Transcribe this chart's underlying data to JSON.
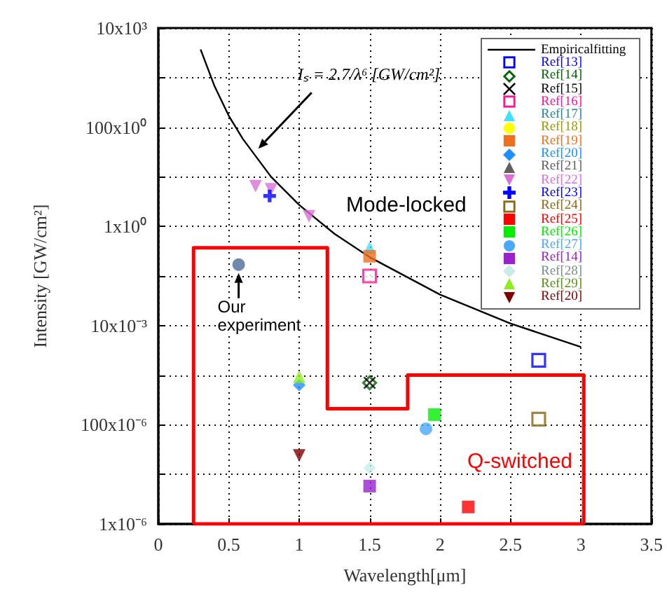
{
  "chart_data": {
    "type": "scatter",
    "xlabel": "Wavelength[μm]",
    "ylabel": "Intensity [GW/cm²]",
    "xlim": [
      0,
      3.5
    ],
    "xticks": [
      0,
      0.5,
      1,
      1.5,
      2,
      2.5,
      3,
      3.5
    ],
    "ylim": [
      1e-06,
      10000.0
    ],
    "log": "y",
    "yticks": [
      {
        "value": 1e-06,
        "label": "1x10⁻⁶"
      },
      {
        "value": 1e-05,
        "label": null
      },
      {
        "value": 0.0001,
        "label": "100x10⁻⁶"
      },
      {
        "value": 0.001,
        "label": null
      },
      {
        "value": 0.01,
        "label": "10x10⁻³"
      },
      {
        "value": 0.1,
        "label": null
      },
      {
        "value": 1,
        "label": "1x10⁰"
      },
      {
        "value": 10,
        "label": null
      },
      {
        "value": 100,
        "label": "100x10⁰"
      },
      {
        "value": 1000,
        "label": null
      },
      {
        "value": 10000,
        "label": "10x10³"
      }
    ],
    "grid": true,
    "legend": "top right",
    "annotations": [
      {
        "text": "Iₛ = 2.7/λ⁶ [GW/cm²]",
        "x": 0.71,
        "y": 37
      },
      {
        "text": "Our experiment",
        "x": 0.57,
        "y": 0.17
      },
      "Mode-locked",
      "Q-switched"
    ],
    "series": [
      {
        "name": "Empiricalfitting",
        "type": "line",
        "color": "#000000",
        "marker": "none",
        "x": [
          0.3,
          0.4,
          0.5,
          0.6,
          0.8,
          1,
          1.25,
          1.5,
          2,
          2.5,
          3
        ],
        "values": [
          3700,
          660,
          170,
          58,
          10,
          2.7,
          0.71,
          0.24,
          0.042,
          0.011,
          0.0037
        ]
      },
      {
        "name": "Ref[13]",
        "color": "#0000ff",
        "marker": "square-open",
        "x": [
          2.7
        ],
        "values": [
          0.002
        ]
      },
      {
        "name": "Ref[14]",
        "color": "#006400",
        "marker": "diamond-open",
        "x": [
          1.5
        ],
        "values": [
          0.0007
        ]
      },
      {
        "name": "Ref[15]",
        "color": "#000000",
        "marker": "cross",
        "x": [
          1.5
        ],
        "values": [
          0.0007
        ]
      },
      {
        "name": "Ref[16]",
        "color": "#ff1493",
        "marker": "square-open",
        "x": [
          1.5
        ],
        "values": [
          0.1
        ]
      },
      {
        "name": "Ref[17]",
        "color": "#40e0ff",
        "marker": "triangle",
        "x": [
          1.5
        ],
        "values": [
          0.37
        ]
      },
      {
        "name": "Ref[18]",
        "color": "#ffff00",
        "marker": "circle"
      },
      {
        "name": "Ref[19]",
        "color": "#f07020",
        "marker": "square",
        "x": [
          1.5
        ],
        "values": [
          0.25
        ]
      },
      {
        "name": "Ref[20]",
        "color": "#1e90ff",
        "marker": "diamond",
        "x": [
          1
        ],
        "values": [
          0.00063
        ]
      },
      {
        "name": "Ref[21]",
        "color": "#606060",
        "marker": "triangle"
      },
      {
        "name": "Ref[22]",
        "color": "#da70d6",
        "marker": "triangle-down",
        "x": [
          0.69,
          0.8,
          1.07
        ],
        "values": [
          6.5,
          5.6,
          1.6
        ]
      },
      {
        "name": "Ref[23]",
        "color": "#0000ff",
        "marker": "plus",
        "x": [
          0.79
        ],
        "values": [
          4.1
        ]
      },
      {
        "name": "Ref[24]",
        "color": "#8b6914",
        "marker": "square-open",
        "x": [
          2.7
        ],
        "values": [
          0.00013
        ]
      },
      {
        "name": "Ref[25]",
        "color": "#ff0000",
        "marker": "square",
        "x": [
          2.2
        ],
        "values": [
          2.2e-06
        ]
      },
      {
        "name": "Ref[26]",
        "color": "#00ee00",
        "marker": "square",
        "x": [
          1.96
        ],
        "values": [
          0.00016
        ]
      },
      {
        "name": "Ref[27]",
        "color": "#4aa8ff",
        "marker": "circle",
        "x": [
          1.9
        ],
        "values": [
          8.3e-05
        ]
      },
      {
        "name": "Ref[14]",
        "color": "#9a20d0",
        "marker": "square",
        "x": [
          1.5
        ],
        "values": [
          5.8e-06
        ]
      },
      {
        "name": "Ref[28]",
        "color": "#c8ece8",
        "marker": "diamond",
        "x": [
          1.5
        ],
        "values": [
          1.35e-05
        ]
      },
      {
        "name": "Ref[29]",
        "color": "#90ee20",
        "marker": "triangle",
        "x": [
          1
        ],
        "values": [
          0.00093
        ]
      },
      {
        "name": "Ref[20]",
        "color": "#800000",
        "marker": "triangle-down",
        "x": [
          1
        ],
        "values": [
          2.4e-05
        ]
      },
      {
        "color": "#4a6a9a",
        "marker": "circle",
        "x": [
          0.57
        ],
        "values": [
          0.17
        ]
      },
      {
        "type": "line",
        "color": "#ff0000",
        "marker": "none",
        "x": [
          0.25,
          0.25,
          1.2,
          1.2,
          1.77,
          1.77,
          3.02,
          3.02
        ],
        "values": [
          1e-06,
          0.37,
          0.37,
          0.00021,
          0.00021,
          0.001,
          0.001,
          1e-06
        ]
      },
      {
        "type": "line",
        "color": "#ff0000",
        "marker": "none",
        "x": [
          0.25,
          3.02
        ],
        "values": [
          1e-06,
          1e-06
        ]
      }
    ]
  }
}
